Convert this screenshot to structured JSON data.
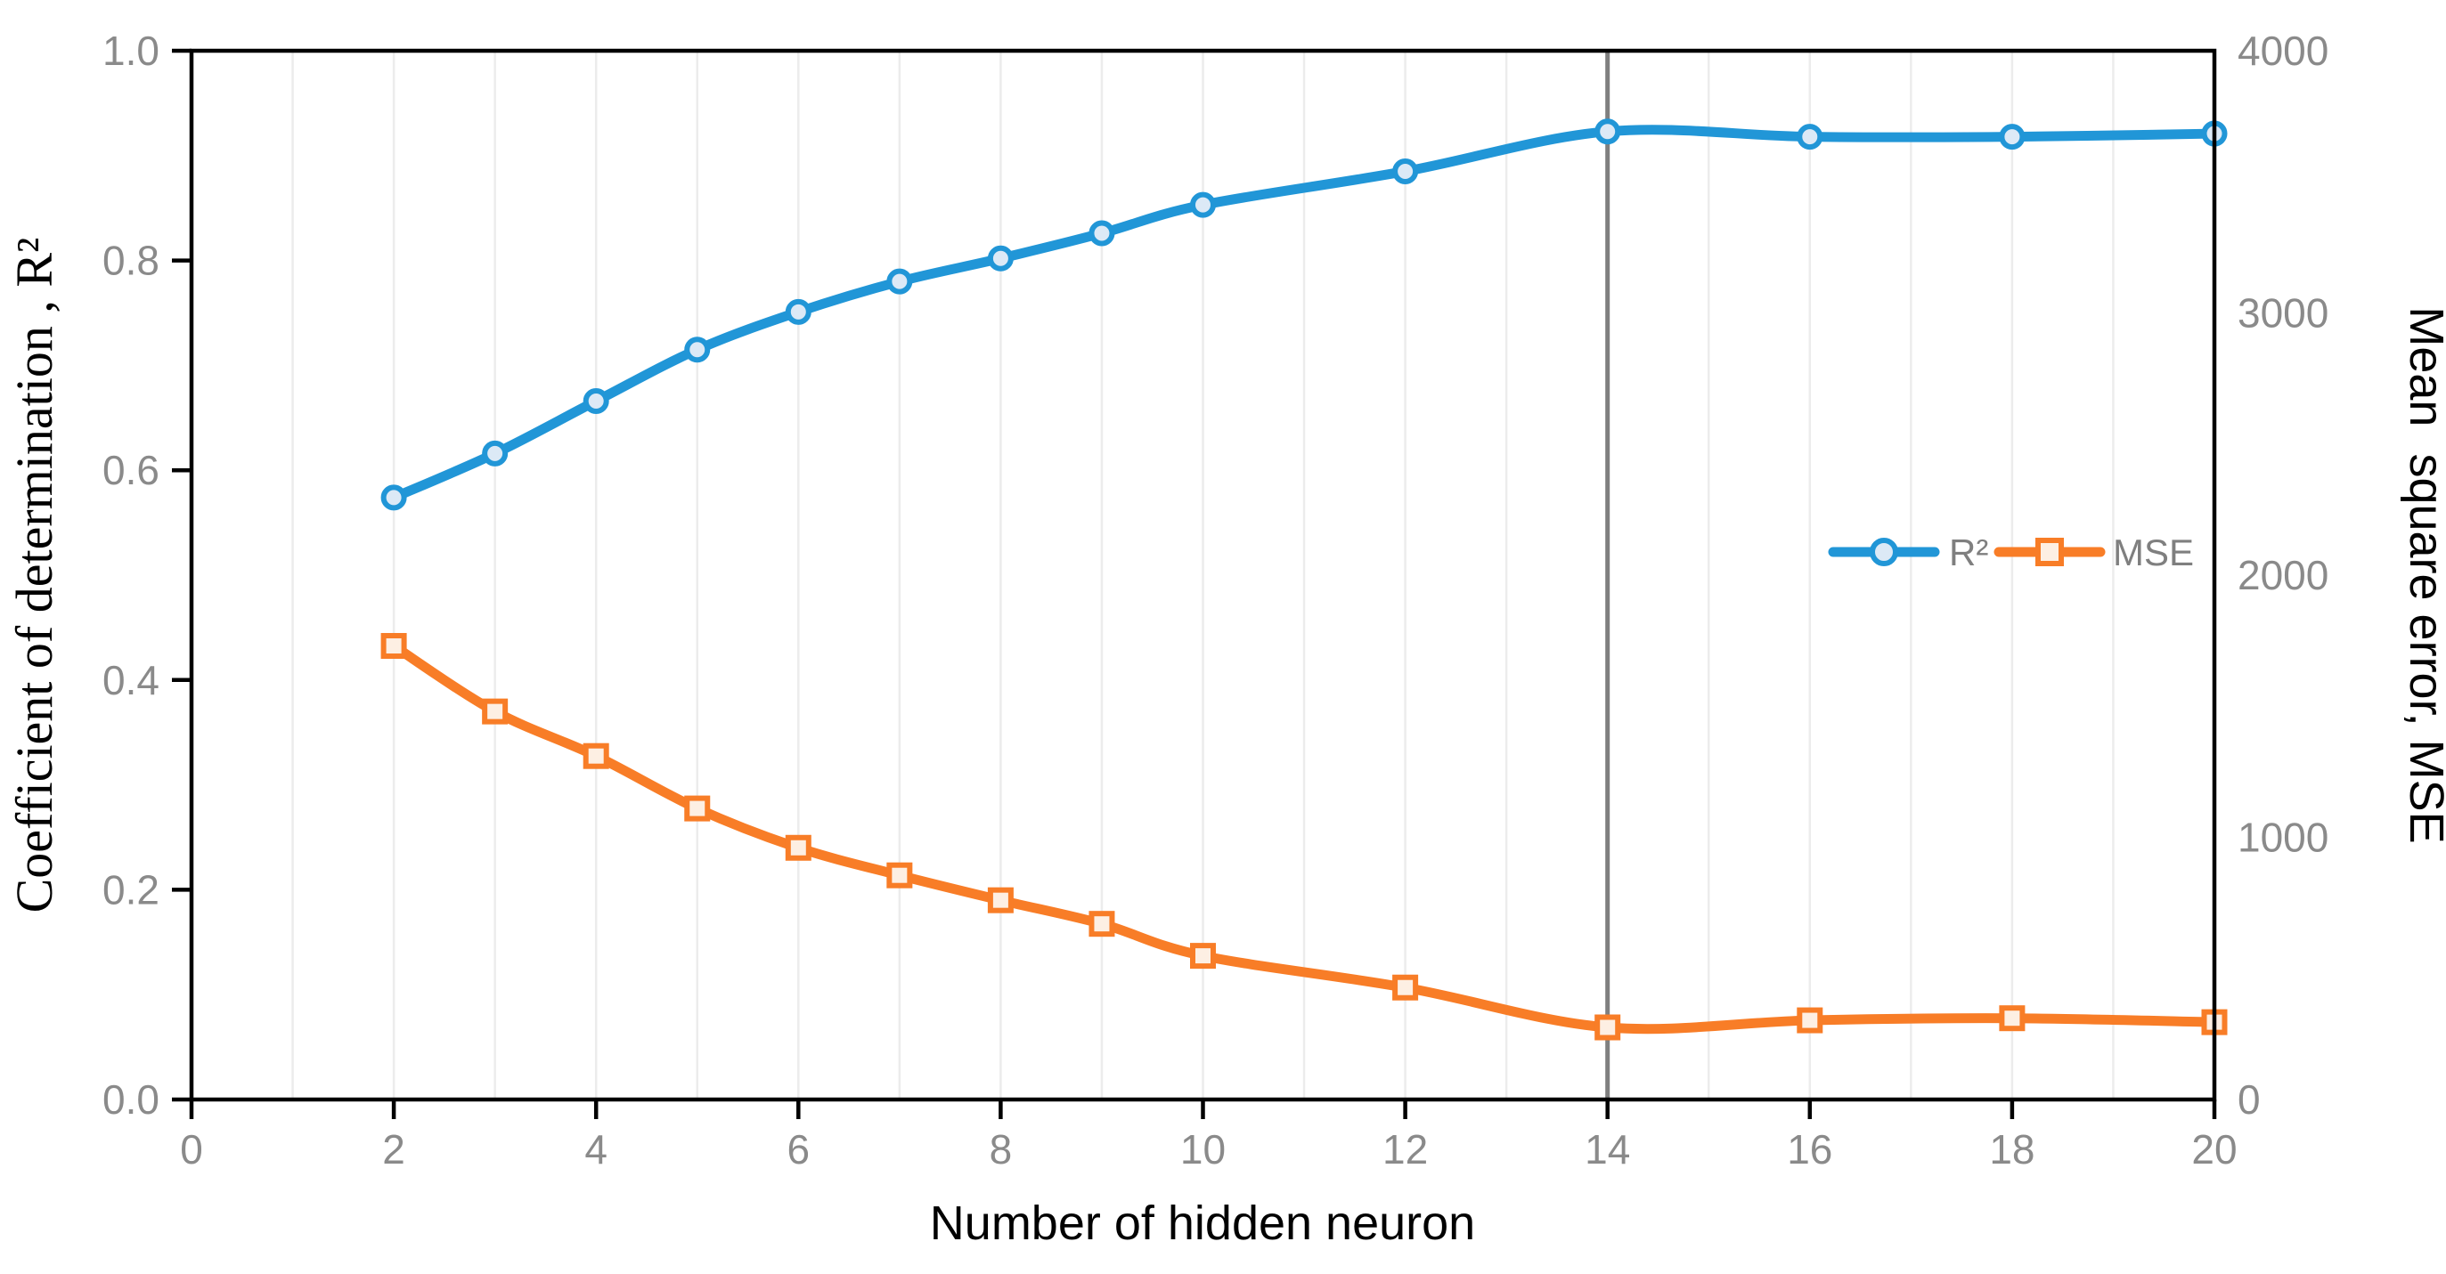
{
  "chart_data": {
    "type": "line",
    "title": "",
    "xlabel": "Number of hidden neuron",
    "ylabel_left": "Coefficient of determination , R²",
    "ylabel_right": "Mean  square error, MSE",
    "x": [
      2,
      3,
      4,
      5,
      6,
      7,
      8,
      9,
      10,
      12,
      14,
      16,
      18,
      20
    ],
    "series": [
      {
        "name": "R²",
        "axis": "left",
        "marker": "circle",
        "color": "#2196d7",
        "marker_fill": "#dce9f6",
        "values": [
          0.574,
          0.616,
          0.666,
          0.715,
          0.751,
          0.78,
          0.802,
          0.826,
          0.853,
          0.885,
          0.923,
          0.918,
          0.918,
          0.921
        ]
      },
      {
        "name": "MSE",
        "axis": "right",
        "marker": "square",
        "color": "#f87d27",
        "marker_fill": "#fdefe3",
        "values": [
          1730,
          1480,
          1310,
          1110,
          960,
          855,
          760,
          670,
          548,
          427,
          275,
          302,
          310,
          295
        ]
      }
    ],
    "xlim": [
      0,
      20
    ],
    "ylim_left": [
      0,
      1.0
    ],
    "ylim_right": [
      0,
      4000
    ],
    "x_tick_labels": [
      "0",
      "2",
      "4",
      "6",
      "8",
      "10",
      "12",
      "14",
      "16",
      "18",
      "20"
    ],
    "y_tick_labels_left": [
      "0.0",
      "0.2",
      "0.4",
      "0.6",
      "0.8",
      "1.0"
    ],
    "y_tick_labels_right": [
      "0",
      "1000",
      "2000",
      "3000",
      "4000"
    ],
    "grid": "vertical gridlines at every integer x from 1 to 19",
    "reference_line_x": 14,
    "legend": {
      "position": "inside-right-center",
      "entries": [
        "R²",
        "MSE"
      ]
    }
  },
  "colors": {
    "axis": "#000000",
    "tick_text": "#8a8a8a",
    "grid": "#ececec",
    "reference_line": "#7f7f7f",
    "background": "#ffffff"
  }
}
